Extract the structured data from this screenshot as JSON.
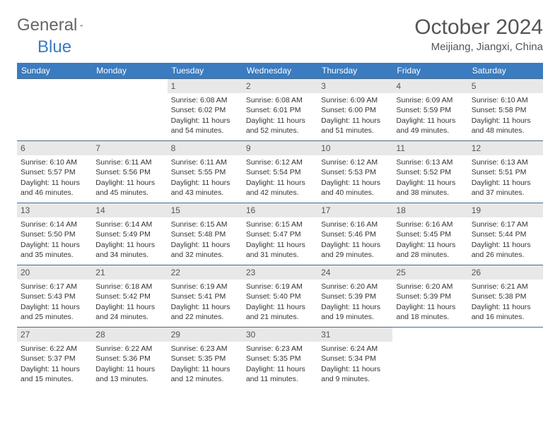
{
  "logo": {
    "text1": "General",
    "text2": "Blue"
  },
  "title": "October 2024",
  "location": "Meijiang, Jiangxi, China",
  "colors": {
    "header_bg": "#3b7bbf",
    "header_fg": "#ffffff",
    "daynum_bg": "#e8e8e8",
    "daynum_border": "#4a6a8a",
    "text": "#333333",
    "page_bg": "#ffffff"
  },
  "weekdays": [
    "Sunday",
    "Monday",
    "Tuesday",
    "Wednesday",
    "Thursday",
    "Friday",
    "Saturday"
  ],
  "weeks": [
    [
      null,
      null,
      {
        "n": "1",
        "sr": "6:08 AM",
        "ss": "6:02 PM",
        "dl": "11 hours and 54 minutes."
      },
      {
        "n": "2",
        "sr": "6:08 AM",
        "ss": "6:01 PM",
        "dl": "11 hours and 52 minutes."
      },
      {
        "n": "3",
        "sr": "6:09 AM",
        "ss": "6:00 PM",
        "dl": "11 hours and 51 minutes."
      },
      {
        "n": "4",
        "sr": "6:09 AM",
        "ss": "5:59 PM",
        "dl": "11 hours and 49 minutes."
      },
      {
        "n": "5",
        "sr": "6:10 AM",
        "ss": "5:58 PM",
        "dl": "11 hours and 48 minutes."
      }
    ],
    [
      {
        "n": "6",
        "sr": "6:10 AM",
        "ss": "5:57 PM",
        "dl": "11 hours and 46 minutes."
      },
      {
        "n": "7",
        "sr": "6:11 AM",
        "ss": "5:56 PM",
        "dl": "11 hours and 45 minutes."
      },
      {
        "n": "8",
        "sr": "6:11 AM",
        "ss": "5:55 PM",
        "dl": "11 hours and 43 minutes."
      },
      {
        "n": "9",
        "sr": "6:12 AM",
        "ss": "5:54 PM",
        "dl": "11 hours and 42 minutes."
      },
      {
        "n": "10",
        "sr": "6:12 AM",
        "ss": "5:53 PM",
        "dl": "11 hours and 40 minutes."
      },
      {
        "n": "11",
        "sr": "6:13 AM",
        "ss": "5:52 PM",
        "dl": "11 hours and 38 minutes."
      },
      {
        "n": "12",
        "sr": "6:13 AM",
        "ss": "5:51 PM",
        "dl": "11 hours and 37 minutes."
      }
    ],
    [
      {
        "n": "13",
        "sr": "6:14 AM",
        "ss": "5:50 PM",
        "dl": "11 hours and 35 minutes."
      },
      {
        "n": "14",
        "sr": "6:14 AM",
        "ss": "5:49 PM",
        "dl": "11 hours and 34 minutes."
      },
      {
        "n": "15",
        "sr": "6:15 AM",
        "ss": "5:48 PM",
        "dl": "11 hours and 32 minutes."
      },
      {
        "n": "16",
        "sr": "6:15 AM",
        "ss": "5:47 PM",
        "dl": "11 hours and 31 minutes."
      },
      {
        "n": "17",
        "sr": "6:16 AM",
        "ss": "5:46 PM",
        "dl": "11 hours and 29 minutes."
      },
      {
        "n": "18",
        "sr": "6:16 AM",
        "ss": "5:45 PM",
        "dl": "11 hours and 28 minutes."
      },
      {
        "n": "19",
        "sr": "6:17 AM",
        "ss": "5:44 PM",
        "dl": "11 hours and 26 minutes."
      }
    ],
    [
      {
        "n": "20",
        "sr": "6:17 AM",
        "ss": "5:43 PM",
        "dl": "11 hours and 25 minutes."
      },
      {
        "n": "21",
        "sr": "6:18 AM",
        "ss": "5:42 PM",
        "dl": "11 hours and 24 minutes."
      },
      {
        "n": "22",
        "sr": "6:19 AM",
        "ss": "5:41 PM",
        "dl": "11 hours and 22 minutes."
      },
      {
        "n": "23",
        "sr": "6:19 AM",
        "ss": "5:40 PM",
        "dl": "11 hours and 21 minutes."
      },
      {
        "n": "24",
        "sr": "6:20 AM",
        "ss": "5:39 PM",
        "dl": "11 hours and 19 minutes."
      },
      {
        "n": "25",
        "sr": "6:20 AM",
        "ss": "5:39 PM",
        "dl": "11 hours and 18 minutes."
      },
      {
        "n": "26",
        "sr": "6:21 AM",
        "ss": "5:38 PM",
        "dl": "11 hours and 16 minutes."
      }
    ],
    [
      {
        "n": "27",
        "sr": "6:22 AM",
        "ss": "5:37 PM",
        "dl": "11 hours and 15 minutes."
      },
      {
        "n": "28",
        "sr": "6:22 AM",
        "ss": "5:36 PM",
        "dl": "11 hours and 13 minutes."
      },
      {
        "n": "29",
        "sr": "6:23 AM",
        "ss": "5:35 PM",
        "dl": "11 hours and 12 minutes."
      },
      {
        "n": "30",
        "sr": "6:23 AM",
        "ss": "5:35 PM",
        "dl": "11 hours and 11 minutes."
      },
      {
        "n": "31",
        "sr": "6:24 AM",
        "ss": "5:34 PM",
        "dl": "11 hours and 9 minutes."
      },
      null,
      null
    ]
  ],
  "labels": {
    "sunrise": "Sunrise:",
    "sunset": "Sunset:",
    "daylight": "Daylight:"
  }
}
